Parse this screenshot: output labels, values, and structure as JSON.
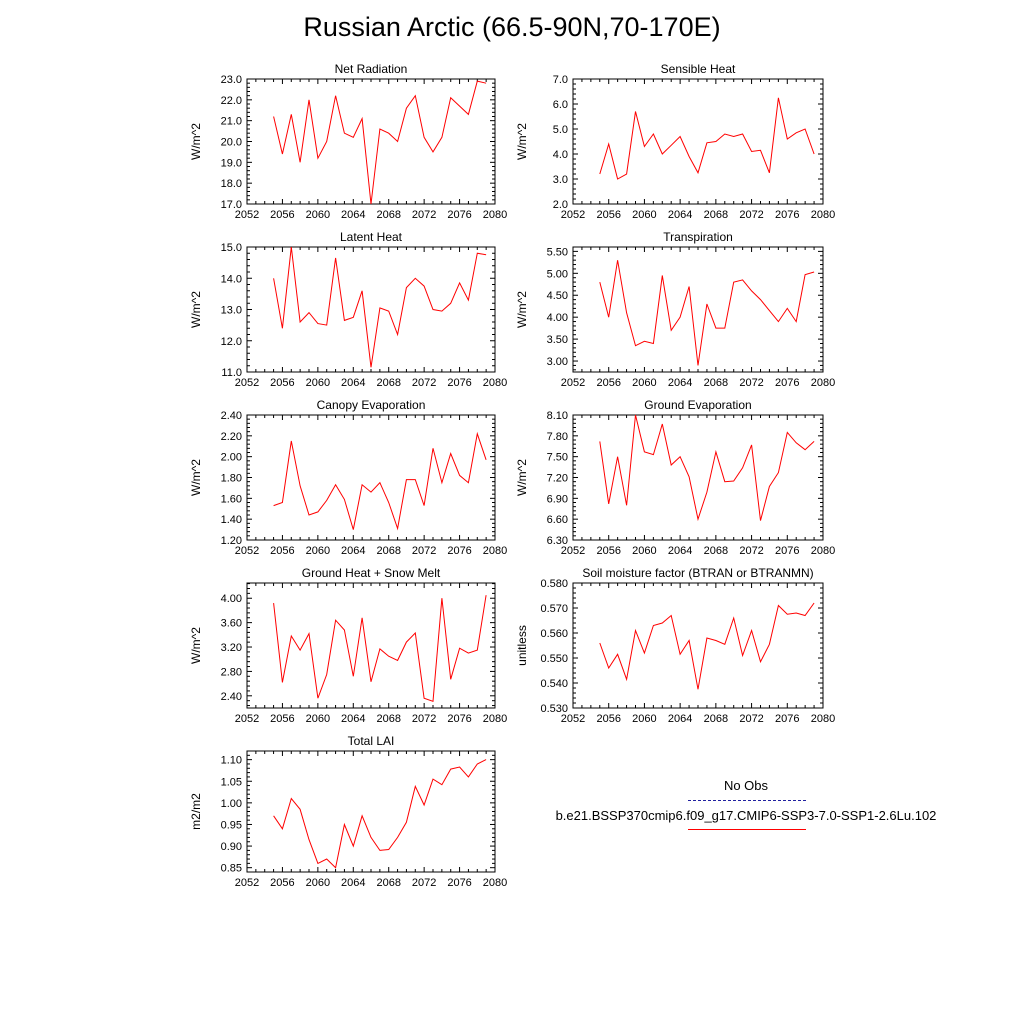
{
  "title": "Russian Arctic (66.5-90N,70-170E)",
  "legend": {
    "obs_label": "No Obs",
    "run_label": "b.e21.BSSP370cmip6.f09_g17.CMIP6-SSP3-7.0-SSP1-2.6Lu.102",
    "obs_color": "#2020a0",
    "run_color": "#ff0000"
  },
  "chart_data": [
    {
      "type": "line",
      "title": "Net Radiation",
      "ylabel": "W/m^2",
      "xlim": [
        2052,
        2080
      ],
      "ylim": [
        17.0,
        23.0
      ],
      "xticks": [
        "2052",
        "2056",
        "2060",
        "2064",
        "2068",
        "2072",
        "2076",
        "2080"
      ],
      "yticks": [
        "17.0",
        "18.0",
        "19.0",
        "20.0",
        "21.0",
        "22.0",
        "23.0"
      ],
      "grid": false,
      "series": [
        {
          "color": "#ff0000",
          "x": [
            2055,
            2056,
            2057,
            2058,
            2059,
            2060,
            2061,
            2062,
            2063,
            2064,
            2065,
            2066,
            2067,
            2068,
            2069,
            2070,
            2071,
            2072,
            2073,
            2074,
            2075,
            2076,
            2077,
            2078,
            2079
          ],
          "values": [
            21.2,
            19.4,
            21.3,
            19.0,
            22.0,
            19.2,
            20.0,
            22.2,
            20.4,
            20.2,
            21.1,
            17.0,
            20.6,
            20.4,
            20.0,
            21.6,
            22.2,
            20.2,
            19.5,
            20.2,
            22.1,
            21.7,
            21.3,
            22.9,
            22.8
          ]
        }
      ]
    },
    {
      "type": "line",
      "title": "Sensible Heat",
      "ylabel": "W/m^2",
      "xlim": [
        2052,
        2080
      ],
      "ylim": [
        2.0,
        7.0
      ],
      "xticks": [
        "2052",
        "2056",
        "2060",
        "2064",
        "2068",
        "2072",
        "2076",
        "2080"
      ],
      "yticks": [
        "2.0",
        "3.0",
        "4.0",
        "5.0",
        "6.0",
        "7.0"
      ],
      "grid": false,
      "series": [
        {
          "color": "#ff0000",
          "x": [
            2055,
            2056,
            2057,
            2058,
            2059,
            2060,
            2061,
            2062,
            2063,
            2064,
            2065,
            2066,
            2067,
            2068,
            2069,
            2070,
            2071,
            2072,
            2073,
            2074,
            2075,
            2076,
            2077,
            2078,
            2079
          ],
          "values": [
            3.2,
            4.4,
            3.0,
            3.2,
            5.7,
            4.3,
            4.8,
            4.0,
            4.35,
            4.7,
            3.9,
            3.25,
            4.45,
            4.5,
            4.8,
            4.7,
            4.8,
            4.1,
            4.15,
            3.25,
            6.25,
            4.6,
            4.85,
            5.0,
            4.0
          ]
        }
      ]
    },
    {
      "type": "line",
      "title": "Latent Heat",
      "ylabel": "W/m^2",
      "xlim": [
        2052,
        2080
      ],
      "ylim": [
        11.0,
        15.0
      ],
      "xticks": [
        "2052",
        "2056",
        "2060",
        "2064",
        "2068",
        "2072",
        "2076",
        "2080"
      ],
      "yticks": [
        "11.0",
        "12.0",
        "13.0",
        "14.0",
        "15.0"
      ],
      "grid": false,
      "series": [
        {
          "color": "#ff0000",
          "x": [
            2055,
            2056,
            2057,
            2058,
            2059,
            2060,
            2061,
            2062,
            2063,
            2064,
            2065,
            2066,
            2067,
            2068,
            2069,
            2070,
            2071,
            2072,
            2073,
            2074,
            2075,
            2076,
            2077,
            2078,
            2079
          ],
          "values": [
            14.0,
            12.4,
            15.0,
            12.6,
            12.9,
            12.55,
            12.5,
            14.65,
            12.65,
            12.75,
            13.6,
            11.15,
            13.05,
            12.95,
            12.2,
            13.7,
            14.0,
            13.75,
            13.0,
            12.95,
            13.2,
            13.85,
            13.3,
            14.8,
            14.75
          ]
        }
      ]
    },
    {
      "type": "line",
      "title": "Transpiration",
      "ylabel": "W/m^2",
      "xlim": [
        2052,
        2080
      ],
      "ylim": [
        2.75,
        5.6
      ],
      "xticks": [
        "2052",
        "2056",
        "2060",
        "2064",
        "2068",
        "2072",
        "2076",
        "2080"
      ],
      "yticks": [
        "3.00",
        "3.50",
        "4.00",
        "4.50",
        "5.00",
        "5.50"
      ],
      "grid": false,
      "series": [
        {
          "color": "#ff0000",
          "x": [
            2055,
            2056,
            2057,
            2058,
            2059,
            2060,
            2061,
            2062,
            2063,
            2064,
            2065,
            2066,
            2067,
            2068,
            2069,
            2070,
            2071,
            2072,
            2073,
            2074,
            2075,
            2076,
            2077,
            2078,
            2079
          ],
          "values": [
            4.8,
            4.0,
            5.3,
            4.1,
            3.35,
            3.45,
            3.4,
            4.95,
            3.7,
            4.0,
            4.7,
            2.9,
            4.3,
            3.75,
            3.75,
            4.8,
            4.85,
            4.6,
            4.4,
            4.15,
            3.9,
            4.2,
            3.9,
            4.97,
            5.03
          ]
        }
      ]
    },
    {
      "type": "line",
      "title": "Canopy Evaporation",
      "ylabel": "W/m^2",
      "xlim": [
        2052,
        2080
      ],
      "ylim": [
        1.2,
        2.4
      ],
      "xticks": [
        "2052",
        "2056",
        "2060",
        "2064",
        "2068",
        "2072",
        "2076",
        "2080"
      ],
      "yticks": [
        "1.20",
        "1.40",
        "1.60",
        "1.80",
        "2.00",
        "2.20",
        "2.40"
      ],
      "grid": false,
      "series": [
        {
          "color": "#ff0000",
          "x": [
            2055,
            2056,
            2057,
            2058,
            2059,
            2060,
            2061,
            2062,
            2063,
            2064,
            2065,
            2066,
            2067,
            2068,
            2069,
            2070,
            2071,
            2072,
            2073,
            2074,
            2075,
            2076,
            2077,
            2078,
            2079
          ],
          "values": [
            1.53,
            1.56,
            2.15,
            1.72,
            1.44,
            1.47,
            1.58,
            1.73,
            1.59,
            1.3,
            1.73,
            1.66,
            1.75,
            1.56,
            1.31,
            1.78,
            1.78,
            1.53,
            2.08,
            1.75,
            2.03,
            1.82,
            1.75,
            2.22,
            1.97
          ]
        }
      ]
    },
    {
      "type": "line",
      "title": "Ground Evaporation",
      "ylabel": "W/m^2",
      "xlim": [
        2052,
        2080
      ],
      "ylim": [
        6.3,
        8.1
      ],
      "xticks": [
        "2052",
        "2056",
        "2060",
        "2064",
        "2068",
        "2072",
        "2076",
        "2080"
      ],
      "yticks": [
        "6.30",
        "6.60",
        "6.90",
        "7.20",
        "7.50",
        "7.80",
        "8.10"
      ],
      "grid": false,
      "series": [
        {
          "color": "#ff0000",
          "x": [
            2055,
            2056,
            2057,
            2058,
            2059,
            2060,
            2061,
            2062,
            2063,
            2064,
            2065,
            2066,
            2067,
            2068,
            2069,
            2070,
            2071,
            2072,
            2073,
            2074,
            2075,
            2076,
            2077,
            2078,
            2079
          ],
          "values": [
            7.72,
            6.82,
            7.5,
            6.8,
            8.1,
            7.57,
            7.53,
            7.97,
            7.38,
            7.5,
            7.21,
            6.6,
            6.99,
            7.57,
            7.14,
            7.15,
            7.34,
            7.67,
            6.58,
            7.07,
            7.27,
            7.85,
            7.7,
            7.6,
            7.72
          ]
        }
      ]
    },
    {
      "type": "line",
      "title": "Ground Heat + Snow Melt",
      "ylabel": "W/m^2",
      "xlim": [
        2052,
        2080
      ],
      "ylim": [
        2.2,
        4.25
      ],
      "xticks": [
        "2052",
        "2056",
        "2060",
        "2064",
        "2068",
        "2072",
        "2076",
        "2080"
      ],
      "yticks": [
        "2.40",
        "2.80",
        "3.20",
        "3.60",
        "4.00"
      ],
      "grid": false,
      "series": [
        {
          "color": "#ff0000",
          "x": [
            2055,
            2056,
            2057,
            2058,
            2059,
            2060,
            2061,
            2062,
            2063,
            2064,
            2065,
            2066,
            2067,
            2068,
            2069,
            2070,
            2071,
            2072,
            2073,
            2074,
            2075,
            2076,
            2077,
            2078,
            2079
          ],
          "values": [
            3.92,
            2.62,
            3.38,
            3.15,
            3.42,
            2.36,
            2.75,
            3.64,
            3.48,
            2.72,
            3.68,
            2.63,
            3.17,
            3.05,
            2.98,
            3.28,
            3.43,
            2.36,
            2.31,
            4.0,
            2.67,
            3.18,
            3.1,
            3.15,
            4.05
          ]
        }
      ]
    },
    {
      "type": "line",
      "title": "Soil moisture factor (BTRAN or BTRANMN)",
      "ylabel": "unitless",
      "xlim": [
        2052,
        2080
      ],
      "ylim": [
        0.53,
        0.58
      ],
      "xticks": [
        "2052",
        "2056",
        "2060",
        "2064",
        "2068",
        "2072",
        "2076",
        "2080"
      ],
      "yticks": [
        "0.530",
        "0.540",
        "0.550",
        "0.560",
        "0.570",
        "0.580"
      ],
      "grid": false,
      "series": [
        {
          "color": "#ff0000",
          "x": [
            2055,
            2056,
            2057,
            2058,
            2059,
            2060,
            2061,
            2062,
            2063,
            2064,
            2065,
            2066,
            2067,
            2068,
            2069,
            2070,
            2071,
            2072,
            2073,
            2074,
            2075,
            2076,
            2077,
            2078,
            2079
          ],
          "values": [
            0.556,
            0.546,
            0.5515,
            0.5415,
            0.561,
            0.552,
            0.563,
            0.564,
            0.567,
            0.5515,
            0.557,
            0.5375,
            0.558,
            0.557,
            0.5555,
            0.566,
            0.551,
            0.561,
            0.5485,
            0.5555,
            0.571,
            0.5675,
            0.568,
            0.567,
            0.572
          ]
        }
      ]
    },
    {
      "type": "line",
      "title": "Total LAI",
      "ylabel": "m2/m2",
      "xlim": [
        2052,
        2080
      ],
      "ylim": [
        0.84,
        1.12
      ],
      "xticks": [
        "2052",
        "2056",
        "2060",
        "2064",
        "2068",
        "2072",
        "2076",
        "2080"
      ],
      "yticks": [
        "0.85",
        "0.90",
        "0.95",
        "1.00",
        "1.05",
        "1.10"
      ],
      "grid": false,
      "series": [
        {
          "color": "#ff0000",
          "x": [
            2055,
            2056,
            2057,
            2058,
            2059,
            2060,
            2061,
            2062,
            2063,
            2064,
            2065,
            2066,
            2067,
            2068,
            2069,
            2070,
            2071,
            2072,
            2073,
            2074,
            2075,
            2076,
            2077,
            2078,
            2079
          ],
          "values": [
            0.97,
            0.94,
            1.01,
            0.985,
            0.915,
            0.86,
            0.87,
            0.85,
            0.95,
            0.9,
            0.97,
            0.92,
            0.89,
            0.892,
            0.92,
            0.955,
            1.038,
            0.995,
            1.055,
            1.042,
            1.078,
            1.083,
            1.06,
            1.09,
            1.1
          ]
        }
      ]
    }
  ]
}
